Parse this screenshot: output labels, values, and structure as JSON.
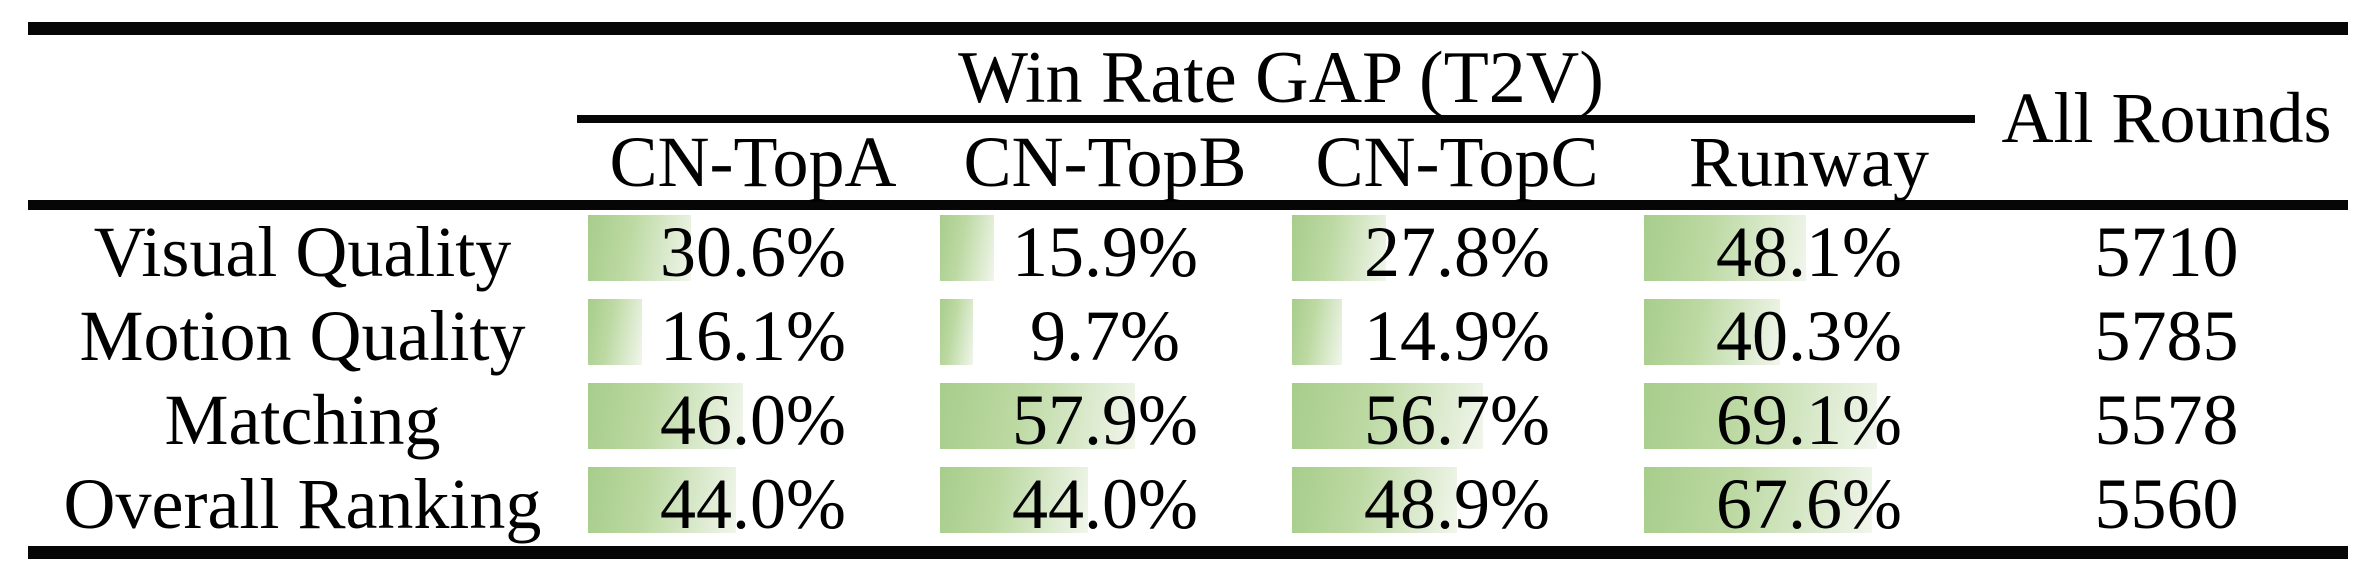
{
  "table": {
    "group_header": "Win Rate GAP (T2V)",
    "all_rounds_header": "All Rounds",
    "columns": [
      "CN-TopA",
      "CN-TopB",
      "CN-TopC",
      "Runway"
    ],
    "rows": [
      {
        "label": "Visual Quality",
        "cells": [
          {
            "text": "30.6%",
            "value": 30.6
          },
          {
            "text": "15.9%",
            "value": 15.9
          },
          {
            "text": "27.8%",
            "value": 27.8
          },
          {
            "text": "48.1%",
            "value": 48.1
          }
        ],
        "all_rounds": "5710"
      },
      {
        "label": "Motion Quality",
        "cells": [
          {
            "text": "16.1%",
            "value": 16.1
          },
          {
            "text": "9.7%",
            "value": 9.7
          },
          {
            "text": "14.9%",
            "value": 14.9
          },
          {
            "text": "40.3%",
            "value": 40.3
          }
        ],
        "all_rounds": "5785"
      },
      {
        "label": "Matching",
        "cells": [
          {
            "text": "46.0%",
            "value": 46.0
          },
          {
            "text": "57.9%",
            "value": 57.9
          },
          {
            "text": "56.7%",
            "value": 56.7
          },
          {
            "text": "69.1%",
            "value": 69.1
          }
        ],
        "all_rounds": "5578"
      },
      {
        "label": "Overall Ranking",
        "cells": [
          {
            "text": "44.0%",
            "value": 44.0
          },
          {
            "text": "44.0%",
            "value": 44.0
          },
          {
            "text": "48.9%",
            "value": 48.9
          },
          {
            "text": "67.6%",
            "value": 67.6
          }
        ],
        "all_rounds": "5560"
      }
    ],
    "colors": {
      "bar_green": "#a7cd8b",
      "bar_fade": "#f1f6ec",
      "rule_black": "#060606"
    }
  },
  "chart_data": {
    "type": "bar",
    "title": "Win Rate GAP (T2V)",
    "categories": [
      "Visual Quality",
      "Motion Quality",
      "Matching",
      "Overall Ranking"
    ],
    "series": [
      {
        "name": "CN-TopA",
        "values": [
          30.6,
          16.1,
          46.0,
          44.0
        ]
      },
      {
        "name": "CN-TopB",
        "values": [
          15.9,
          9.7,
          57.9,
          44.0
        ]
      },
      {
        "name": "CN-TopC",
        "values": [
          27.8,
          14.9,
          56.7,
          48.9
        ]
      },
      {
        "name": "Runway",
        "values": [
          48.1,
          40.3,
          69.1,
          67.6
        ]
      }
    ],
    "all_rounds": [
      5710,
      5785,
      5578,
      5560
    ],
    "unit": "%",
    "xlim": [
      0,
      100
    ],
    "layout": "horizontal in-cell data bars, bar length proportional to percent"
  }
}
